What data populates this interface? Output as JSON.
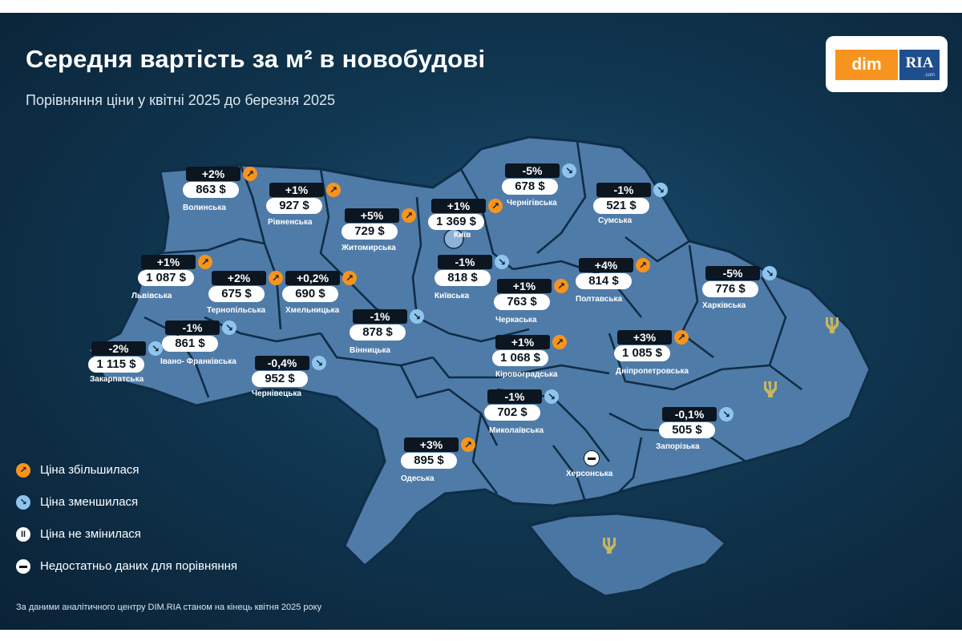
{
  "header": {
    "title": "Середня вартість за м² в новобудові",
    "subtitle": "Порівняння ціни у квітні 2025 до березня 2025"
  },
  "logo": {
    "part1": "dim",
    "part2": "RIA",
    "part3": ".com"
  },
  "colors": {
    "increase": "#f7941d",
    "decrease": "#8ec5ee",
    "region_fill": "#4f7ba8",
    "background": "#103650"
  },
  "icons": {
    "up": "arrow-up-right-icon",
    "down": "arrow-down-right-icon",
    "same": "pause-icon",
    "nodata": "minus-icon"
  },
  "regions": [
    {
      "name": "Волинська",
      "change": "+2%",
      "trend": "up",
      "price": "863 $"
    },
    {
      "name": "Рівненська",
      "change": "+1%",
      "trend": "up",
      "price": "927 $"
    },
    {
      "name": "Житомирська",
      "change": "+5%",
      "trend": "up",
      "price": "729 $"
    },
    {
      "name": "Київ",
      "change": "+1%",
      "trend": "up",
      "price": "1 369 $"
    },
    {
      "name": "Чернігівська",
      "change": "-5%",
      "trend": "down",
      "price": "678 $"
    },
    {
      "name": "Сумська",
      "change": "-1%",
      "trend": "down",
      "price": "521 $"
    },
    {
      "name": "Львівська",
      "change": "+1%",
      "trend": "up",
      "price": "1 087 $"
    },
    {
      "name": "Тернопільська",
      "change": "+2%",
      "trend": "up",
      "price": "675 $"
    },
    {
      "name": "Хмельницька",
      "change": "+0,2%",
      "trend": "up",
      "price": "690 $"
    },
    {
      "name": "Київська",
      "change": "-1%",
      "trend": "down",
      "price": "818 $"
    },
    {
      "name": "Полтавська",
      "change": "+4%",
      "trend": "up",
      "price": "814 $"
    },
    {
      "name": "Харківська",
      "change": "-5%",
      "trend": "down",
      "price": "776 $"
    },
    {
      "name": "Черкаська",
      "change": "+1%",
      "trend": "up",
      "price": "763 $"
    },
    {
      "name": "Івано- Франківська",
      "change": "-1%",
      "trend": "down",
      "price": "861 $"
    },
    {
      "name": "Вінницька",
      "change": "-1%",
      "trend": "down",
      "price": "878 $"
    },
    {
      "name": "Закарпатська",
      "change": "-2%",
      "trend": "down",
      "price": "1 115 $"
    },
    {
      "name": "Чернівецька",
      "change": "-0,4%",
      "trend": "down",
      "price": "952 $"
    },
    {
      "name": "Кіровоградська",
      "change": "+1%",
      "trend": "up",
      "price": "1 068 $"
    },
    {
      "name": "Дніпропетровська",
      "change": "+3%",
      "trend": "up",
      "price": "1 085 $"
    },
    {
      "name": "Миколаївська",
      "change": "-1%",
      "trend": "down",
      "price": "702 $"
    },
    {
      "name": "Запорізька",
      "change": "-0,1%",
      "trend": "down",
      "price": "505 $"
    },
    {
      "name": "Одеська",
      "change": "+3%",
      "trend": "up",
      "price": "895 $"
    },
    {
      "name": "Херсонська",
      "trend": "nodata"
    }
  ],
  "legend": [
    {
      "label": "Ціна збільшилася",
      "type": "up"
    },
    {
      "label": "Ціна зменшилася",
      "type": "down"
    },
    {
      "label": "Ціна не змінилася",
      "type": "same"
    },
    {
      "label": "Недостатньо даних для порівняння",
      "type": "nodata"
    }
  ],
  "footnote": "За даними аналітичного центру DIM.RIA станом на кінець квітня 2025 року"
}
